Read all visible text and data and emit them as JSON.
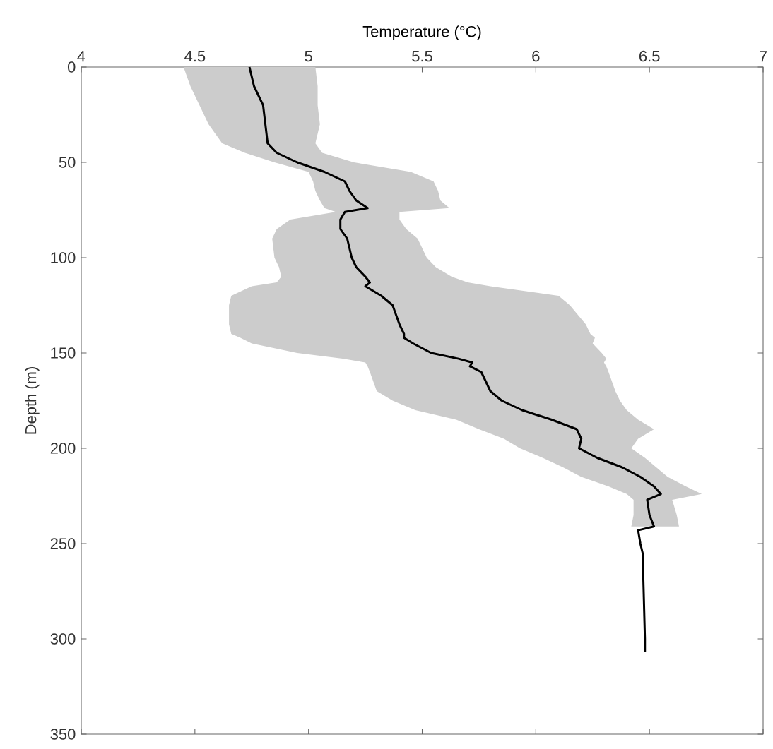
{
  "chart_data": {
    "type": "line",
    "orientation": "horizontal",
    "xlabel": "Temperature (°C)",
    "ylabel": "Depth (m)",
    "xlim": [
      4,
      7
    ],
    "xticks": [
      4,
      4.5,
      5,
      5.5,
      6,
      6.5,
      7
    ],
    "ylim": [
      350,
      0
    ],
    "yticks": [
      0,
      50,
      100,
      150,
      200,
      250,
      300,
      350
    ],
    "series": [
      {
        "color": "#000000",
        "x": [
          0,
          10,
          20,
          30,
          40,
          45,
          50,
          55,
          60,
          65,
          70,
          74,
          76,
          80,
          85,
          90,
          100,
          105,
          110,
          113,
          115,
          120,
          125,
          135,
          140,
          142,
          145,
          150,
          153,
          155,
          157,
          160,
          170,
          175,
          180,
          185,
          190,
          195,
          200,
          205,
          210,
          215,
          220,
          224,
          227,
          235,
          241,
          243,
          250,
          255,
          300,
          307
        ],
        "values": [
          4.74,
          4.76,
          4.8,
          4.81,
          4.82,
          4.86,
          4.95,
          5.07,
          5.16,
          5.18,
          5.21,
          5.26,
          5.16,
          5.14,
          5.14,
          5.17,
          5.19,
          5.21,
          5.25,
          5.27,
          5.25,
          5.32,
          5.37,
          5.4,
          5.42,
          5.42,
          5.46,
          5.54,
          5.66,
          5.72,
          5.71,
          5.76,
          5.8,
          5.85,
          5.94,
          6.07,
          6.18,
          6.2,
          6.19,
          6.27,
          6.38,
          6.46,
          6.52,
          6.55,
          6.49,
          6.5,
          6.52,
          6.45,
          6.46,
          6.47,
          6.48,
          6.48
        ],
        "lower": [
          4.45,
          4.48,
          4.52,
          4.56,
          4.62,
          4.72,
          4.85,
          5.0,
          5.02,
          5.03,
          5.05,
          5.07,
          5.12,
          4.92,
          4.86,
          4.84,
          4.85,
          4.87,
          4.88,
          4.86,
          4.75,
          4.66,
          4.65,
          4.65,
          4.66,
          4.7,
          4.75,
          4.95,
          5.15,
          5.25,
          5.26,
          5.27,
          5.3,
          5.37,
          5.47,
          5.65,
          5.75,
          5.86,
          5.93,
          6.03,
          6.12,
          6.2,
          6.32,
          6.4,
          6.43,
          6.43,
          6.42,
          null,
          null,
          null,
          null,
          null
        ],
        "upper": [
          5.03,
          5.04,
          5.04,
          5.05,
          5.03,
          5.06,
          5.2,
          5.45,
          5.55,
          5.57,
          5.58,
          5.62,
          5.4,
          5.4,
          5.43,
          5.48,
          5.52,
          5.56,
          5.63,
          5.7,
          5.8,
          6.1,
          6.15,
          6.22,
          6.24,
          6.26,
          6.25,
          6.29,
          6.31,
          6.3,
          6.31,
          6.32,
          6.35,
          6.37,
          6.4,
          6.45,
          6.52,
          6.45,
          6.42,
          6.48,
          6.53,
          6.58,
          6.66,
          6.73,
          6.6,
          6.62,
          6.63,
          null,
          null,
          null,
          null,
          null
        ]
      }
    ]
  }
}
